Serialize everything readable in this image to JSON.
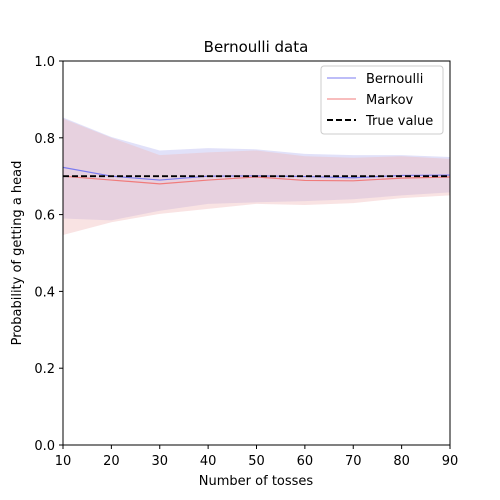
{
  "chart_data": {
    "type": "line",
    "title": "Bernoulli data",
    "xlabel": "Number of tosses",
    "ylabel": "Probability of getting a head",
    "xlim": [
      10,
      90
    ],
    "ylim": [
      0.0,
      1.0
    ],
    "x_ticks": [
      "10",
      "20",
      "30",
      "40",
      "50",
      "60",
      "70",
      "80",
      "90"
    ],
    "y_ticks": [
      "0.0",
      "0.2",
      "0.4",
      "0.6",
      "0.8",
      "1.0"
    ],
    "x": [
      10,
      20,
      30,
      40,
      50,
      60,
      70,
      80,
      90
    ],
    "series": [
      {
        "name": "Bernoulli",
        "color": "#7b7bf0",
        "band_color": "#b3b3f0",
        "values": [
          0.723,
          0.7,
          0.69,
          0.7,
          0.701,
          0.699,
          0.696,
          0.702,
          0.703
        ],
        "lower": [
          0.59,
          0.585,
          0.61,
          0.628,
          0.632,
          0.635,
          0.64,
          0.65,
          0.658
        ],
        "upper": [
          0.853,
          0.802,
          0.767,
          0.773,
          0.77,
          0.758,
          0.755,
          0.755,
          0.75
        ]
      },
      {
        "name": "Markov",
        "color": "#f07b7b",
        "band_color": "#f0b8b8",
        "values": [
          0.7,
          0.69,
          0.68,
          0.69,
          0.698,
          0.689,
          0.688,
          0.695,
          0.698
        ],
        "lower": [
          0.547,
          0.58,
          0.602,
          0.615,
          0.628,
          0.625,
          0.63,
          0.643,
          0.65
        ],
        "upper": [
          0.85,
          0.8,
          0.755,
          0.762,
          0.767,
          0.752,
          0.748,
          0.752,
          0.745
        ]
      }
    ],
    "reference_line": {
      "name": "True value",
      "value": 0.7,
      "style": "dashed",
      "color": "#000000"
    },
    "legend_position": "top-right",
    "grid": false
  }
}
